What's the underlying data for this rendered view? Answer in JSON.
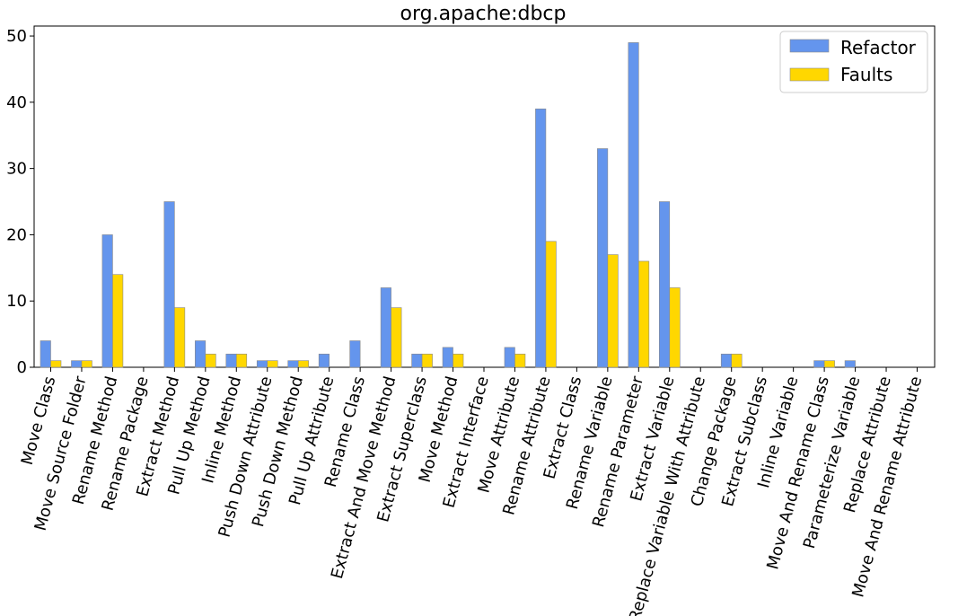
{
  "chart_data": {
    "type": "bar",
    "title": "org.apache:dbcp",
    "xlabel": "",
    "ylabel": "",
    "ylim": [
      0,
      51.5
    ],
    "yticks": [
      0,
      10,
      20,
      30,
      40,
      50
    ],
    "grid": false,
    "legend_position": "top-right",
    "categories": [
      "Move Class",
      "Move Source Folder",
      "Rename Method",
      "Rename Package",
      "Extract Method",
      "Pull Up Method",
      "Inline Method",
      "Push Down Attribute",
      "Push Down Method",
      "Pull Up Attribute",
      "Rename Class",
      "Extract And Move Method",
      "Extract Superclass",
      "Move Method",
      "Extract Interface",
      "Move Attribute",
      "Rename Attribute",
      "Extract Class",
      "Rename Variable",
      "Rename Parameter",
      "Extract Variable",
      "Replace Variable With Attribute",
      "Change Package",
      "Extract Subclass",
      "Inline Variable",
      "Move And Rename Class",
      "Parameterize Variable",
      "Replace Attribute",
      "Move And Rename Attribute"
    ],
    "series": [
      {
        "name": "Refactor",
        "color": "#6495ED",
        "values": [
          4,
          1,
          20,
          0,
          25,
          4,
          2,
          1,
          1,
          2,
          4,
          12,
          2,
          3,
          0,
          3,
          39,
          0,
          33,
          49,
          25,
          0,
          2,
          0,
          0,
          1,
          1,
          0,
          0
        ]
      },
      {
        "name": "Faults",
        "color": "#FFD700",
        "values": [
          1,
          1,
          14,
          0,
          9,
          2,
          2,
          1,
          1,
          0,
          0,
          9,
          2,
          2,
          0,
          2,
          19,
          0,
          17,
          16,
          12,
          0,
          2,
          0,
          0,
          1,
          0,
          0,
          0
        ]
      }
    ]
  }
}
